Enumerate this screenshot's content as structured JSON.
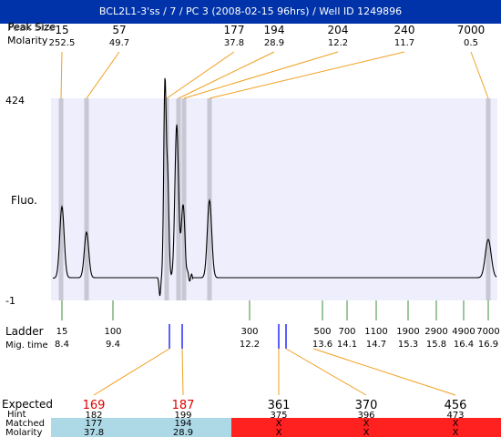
{
  "title": "BCL2L1-3'ss / 7 / PC 3 (2008-02-15 96hrs) / Well ID 1249896",
  "header_labels": {
    "peak_size": "Peak Size",
    "molarity": "Molarity"
  },
  "top_peaks": [
    {
      "size": "15",
      "molarity": "252.5"
    },
    {
      "size": "57",
      "molarity": "49.7"
    },
    {
      "size": "177",
      "molarity": "37.8"
    },
    {
      "size": "194",
      "molarity": "28.9"
    },
    {
      "size": "204",
      "molarity": "12.2"
    },
    {
      "size": "240",
      "molarity": "11.7"
    },
    {
      "size": "7000",
      "molarity": "0.5"
    }
  ],
  "y_axis": {
    "max_label": "424",
    "min_label": "-1",
    "title": "Fluo."
  },
  "ladder": {
    "title": "Ladder",
    "mig_label": "Mig. time",
    "items": [
      {
        "size": "15",
        "time": "8.4"
      },
      {
        "size": "100",
        "time": "9.4"
      },
      {
        "size": "300",
        "time": "12.2"
      },
      {
        "size": "500",
        "time": "13.6"
      },
      {
        "size": "700",
        "time": "14.1"
      },
      {
        "size": "1100",
        "time": "14.7"
      },
      {
        "size": "1900",
        "time": "15.3"
      },
      {
        "size": "2900",
        "time": "15.8"
      },
      {
        "size": "4900",
        "time": "16.4"
      },
      {
        "size": "7000",
        "time": "16.9"
      }
    ]
  },
  "bottom_labels": {
    "expected": "Expected",
    "hint": "Hint",
    "matched": "Matched",
    "molarity": "Molarity"
  },
  "expected": [
    {
      "value": "169",
      "hint": "182",
      "matched": "177",
      "molarity": "37.8",
      "status": "matched"
    },
    {
      "value": "187",
      "hint": "199",
      "matched": "194",
      "molarity": "28.9",
      "status": "matched"
    },
    {
      "value": "361",
      "hint": "375",
      "matched": "X",
      "molarity": "X",
      "status": "unmatched"
    },
    {
      "value": "370",
      "hint": "396",
      "matched": "X",
      "molarity": "X",
      "status": "unmatched"
    },
    {
      "value": "456",
      "hint": "473",
      "matched": "X",
      "molarity": "X",
      "status": "unmatched"
    }
  ],
  "colors": {
    "title_bg": "#0033aa",
    "plot_bg": "#eeeefc",
    "band": "#c8c8d4",
    "leader": "#f0a020",
    "tick_green": "#3c8c3c",
    "expected_marker": "#1a1aff",
    "matched_bg": "#add8e6",
    "unmatched_bg": "#ff2020",
    "expected_red": "#e00000"
  }
}
